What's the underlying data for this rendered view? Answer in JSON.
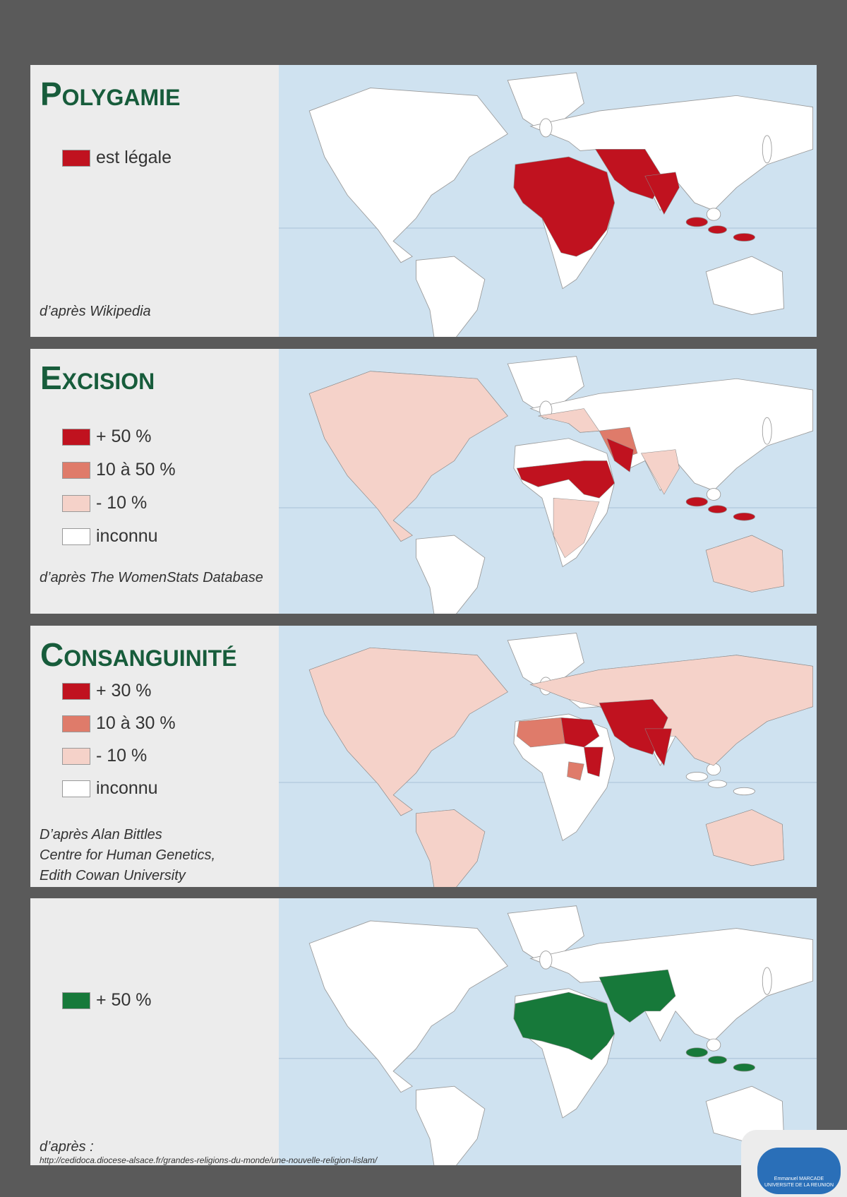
{
  "panels": [
    {
      "title": "Polygamie",
      "legend": [
        {
          "label": "est légale",
          "color": "#c0121f"
        }
      ],
      "source": [
        "d’après Wikipedia"
      ]
    },
    {
      "title": "Excision",
      "legend": [
        {
          "label": "+ 50 %",
          "color": "#c0121f"
        },
        {
          "label": "10 à 50 %",
          "color": "#df7b6a"
        },
        {
          "label": "- 10 %",
          "color": "#f5d2c9"
        },
        {
          "label": "inconnu",
          "color": "#ffffff"
        }
      ],
      "source": [
        "d’après The WomenStats Database"
      ]
    },
    {
      "title": "Consanguinité",
      "legend": [
        {
          "label": "+ 30 %",
          "color": "#c0121f"
        },
        {
          "label": "10 à 30 %",
          "color": "#df7b6a"
        },
        {
          "label": "- 10 %",
          "color": "#f5d2c9"
        },
        {
          "label": "inconnu",
          "color": "#ffffff"
        }
      ],
      "source": [
        "D’après Alan Bittles",
        "Centre for Human Genetics,",
        "Edith Cowan University"
      ]
    },
    {
      "legend": [
        {
          "label": "+ 50 %",
          "color": "#17793a"
        }
      ],
      "source": [
        "d’après :",
        "http://cedidoca.diocese-alsace.fr/grandes-religions-du-monde/une-nouvelle-religion-lislam/"
      ]
    }
  ],
  "logo": [
    "Emmanuel MARCADE",
    "UNIVERSITE DE LA REUNION"
  ]
}
